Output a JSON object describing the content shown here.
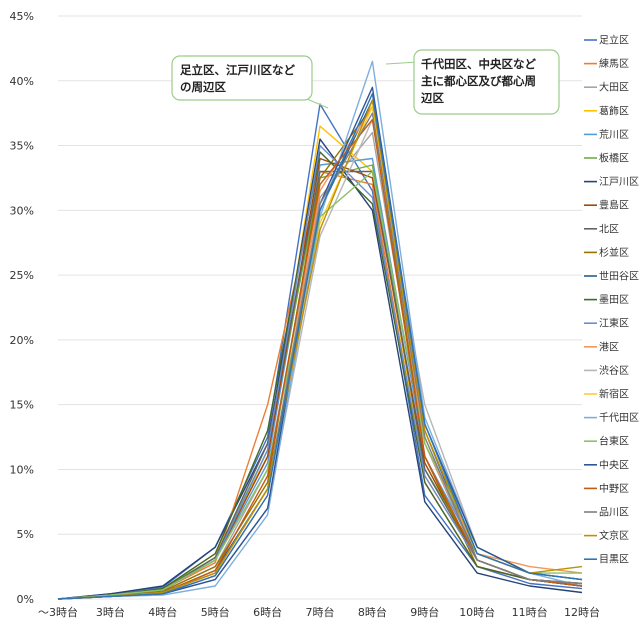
{
  "chart_data": {
    "type": "line",
    "categories": [
      "～3時台",
      "3時台",
      "4時台",
      "5時台",
      "6時台",
      "7時台",
      "8時台",
      "9時台",
      "10時台",
      "11時台",
      "12時台"
    ],
    "y_ticks": [
      "0%",
      "5%",
      "10%",
      "15%",
      "20%",
      "25%",
      "30%",
      "35%",
      "40%",
      "45%"
    ],
    "ylim": [
      0,
      45
    ],
    "y_unit": "percent",
    "grid": true,
    "legend_position": "right",
    "annotations": [
      {
        "lines": [
          "足立区、江戸川区など",
          "の周辺区"
        ],
        "points_to": "7時台"
      },
      {
        "lines": [
          "千代田区、中央区など",
          "主に都心区及び都心周",
          "辺区"
        ],
        "points_to": "8時台"
      }
    ],
    "series": [
      {
        "name": "足立区",
        "color": "#4472c4",
        "values": [
          0,
          0.4,
          0.9,
          4.0,
          12.5,
          38.2,
          31.5,
          8.0,
          2.5,
          1.2,
          0.8
        ]
      },
      {
        "name": "練馬区",
        "color": "#ed7d31",
        "values": [
          0,
          0.3,
          0.7,
          2.8,
          15.0,
          33.0,
          32.0,
          9.0,
          2.5,
          1.5,
          1.0
        ]
      },
      {
        "name": "大田区",
        "color": "#a5a5a5",
        "values": [
          0,
          0.2,
          0.6,
          2.5,
          10.0,
          31.0,
          36.0,
          12.0,
          3.0,
          1.5,
          1.0
        ]
      },
      {
        "name": "葛飾区",
        "color": "#ffc000",
        "values": [
          0,
          0.3,
          0.8,
          3.5,
          11.0,
          36.5,
          33.0,
          9.5,
          3.0,
          1.5,
          1.2
        ]
      },
      {
        "name": "荒川区",
        "color": "#5b9bd5",
        "values": [
          0,
          0.3,
          0.7,
          3.0,
          10.5,
          33.5,
          34.0,
          11.0,
          3.5,
          2.0,
          1.5
        ]
      },
      {
        "name": "板橋区",
        "color": "#70ad47",
        "values": [
          0,
          0.3,
          0.8,
          3.2,
          11.5,
          32.5,
          33.5,
          10.0,
          3.5,
          2.0,
          1.5
        ]
      },
      {
        "name": "江戸川区",
        "color": "#264478",
        "values": [
          0,
          0.4,
          1.0,
          4.0,
          12.0,
          35.5,
          30.0,
          7.5,
          2.0,
          1.0,
          0.5
        ]
      },
      {
        "name": "豊島区",
        "color": "#9e480e",
        "values": [
          0,
          0.3,
          0.7,
          3.0,
          11.0,
          34.0,
          32.5,
          10.5,
          3.0,
          1.5,
          1.2
        ]
      },
      {
        "name": "北区",
        "color": "#636363",
        "values": [
          0,
          0.3,
          0.7,
          3.2,
          12.0,
          33.0,
          33.0,
          10.0,
          3.0,
          1.5,
          1.2
        ]
      },
      {
        "name": "杉並区",
        "color": "#997300",
        "values": [
          0,
          0.2,
          0.6,
          2.5,
          9.0,
          32.5,
          38.0,
          11.0,
          2.5,
          1.5,
          1.0
        ]
      },
      {
        "name": "世田谷区",
        "color": "#255e91",
        "values": [
          0,
          0.2,
          0.5,
          2.2,
          8.5,
          30.0,
          38.5,
          13.0,
          3.0,
          1.5,
          1.0
        ]
      },
      {
        "name": "墨田区",
        "color": "#43682b",
        "values": [
          0,
          0.3,
          0.8,
          3.5,
          13.0,
          34.5,
          30.5,
          9.0,
          2.5,
          1.5,
          1.0
        ]
      },
      {
        "name": "江東区",
        "color": "#698ed0",
        "values": [
          0,
          0.3,
          0.7,
          3.0,
          11.5,
          35.0,
          31.0,
          9.5,
          3.0,
          1.5,
          1.2
        ]
      },
      {
        "name": "港区",
        "color": "#f1975a",
        "values": [
          0,
          0.2,
          0.4,
          1.8,
          8.0,
          31.5,
          38.0,
          12.0,
          3.5,
          2.5,
          2.0
        ]
      },
      {
        "name": "渋谷区",
        "color": "#b7b7b7",
        "values": [
          0,
          0.2,
          0.4,
          1.5,
          7.0,
          28.0,
          37.0,
          15.0,
          4.0,
          2.0,
          1.5
        ]
      },
      {
        "name": "新宿区",
        "color": "#ffcd33",
        "values": [
          0,
          0.2,
          0.5,
          2.0,
          8.5,
          29.0,
          38.0,
          13.0,
          3.5,
          2.0,
          1.5
        ]
      },
      {
        "name": "千代田区",
        "color": "#7cafdd",
        "values": [
          0,
          0.2,
          0.3,
          1.0,
          6.5,
          29.5,
          41.5,
          14.0,
          4.0,
          2.0,
          1.0
        ]
      },
      {
        "name": "台東区",
        "color": "#8cc168",
        "values": [
          0,
          0.3,
          0.7,
          3.0,
          10.0,
          29.5,
          33.0,
          12.0,
          4.0,
          2.0,
          2.0
        ]
      },
      {
        "name": "中央区",
        "color": "#2f5597",
        "values": [
          0,
          0.2,
          0.4,
          1.5,
          7.0,
          30.5,
          39.5,
          13.5,
          4.0,
          2.0,
          1.5
        ]
      },
      {
        "name": "中野区",
        "color": "#c55a11",
        "values": [
          0,
          0.2,
          0.5,
          2.2,
          9.5,
          32.0,
          37.0,
          11.0,
          3.0,
          1.5,
          1.0
        ]
      },
      {
        "name": "品川区",
        "color": "#7f7f7f",
        "values": [
          0,
          0.2,
          0.5,
          2.0,
          8.5,
          30.5,
          37.5,
          12.5,
          3.0,
          1.5,
          1.2
        ]
      },
      {
        "name": "文京区",
        "color": "#bf9000",
        "values": [
          0,
          0.2,
          0.5,
          2.0,
          8.5,
          28.5,
          38.5,
          13.0,
          3.5,
          2.0,
          2.5
        ]
      },
      {
        "name": "目黒区",
        "color": "#2e75b6",
        "values": [
          0,
          0.2,
          0.4,
          1.8,
          8.0,
          30.0,
          39.0,
          13.5,
          3.5,
          2.0,
          1.5
        ]
      }
    ]
  }
}
